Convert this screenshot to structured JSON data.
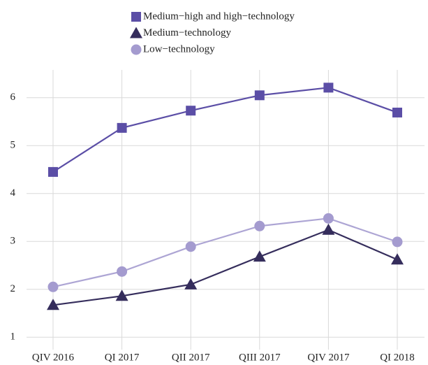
{
  "chart_data": {
    "type": "line",
    "categories": [
      "QIV 2016",
      "QI 2017",
      "QII 2017",
      "QIII 2017",
      "QIV 2017",
      "QI 2018"
    ],
    "series": [
      {
        "name": "Medium−high and high−technology",
        "color": "#5b4ea6",
        "marker": "square",
        "values": [
          4.45,
          5.37,
          5.73,
          6.05,
          6.21,
          5.69
        ]
      },
      {
        "name": "Medium−technology",
        "color": "#352d5c",
        "marker": "triangle",
        "values": [
          1.67,
          1.86,
          2.1,
          2.68,
          3.24,
          2.62
        ]
      },
      {
        "name": "Low−technology",
        "color": "#a49bcf",
        "marker": "circle",
        "values": [
          2.05,
          2.37,
          2.89,
          3.32,
          3.48,
          2.99
        ]
      }
    ],
    "ylim": [
      0.74,
      6.58
    ],
    "yticks": [
      1,
      2,
      3,
      4,
      5,
      6
    ],
    "grid": true
  }
}
